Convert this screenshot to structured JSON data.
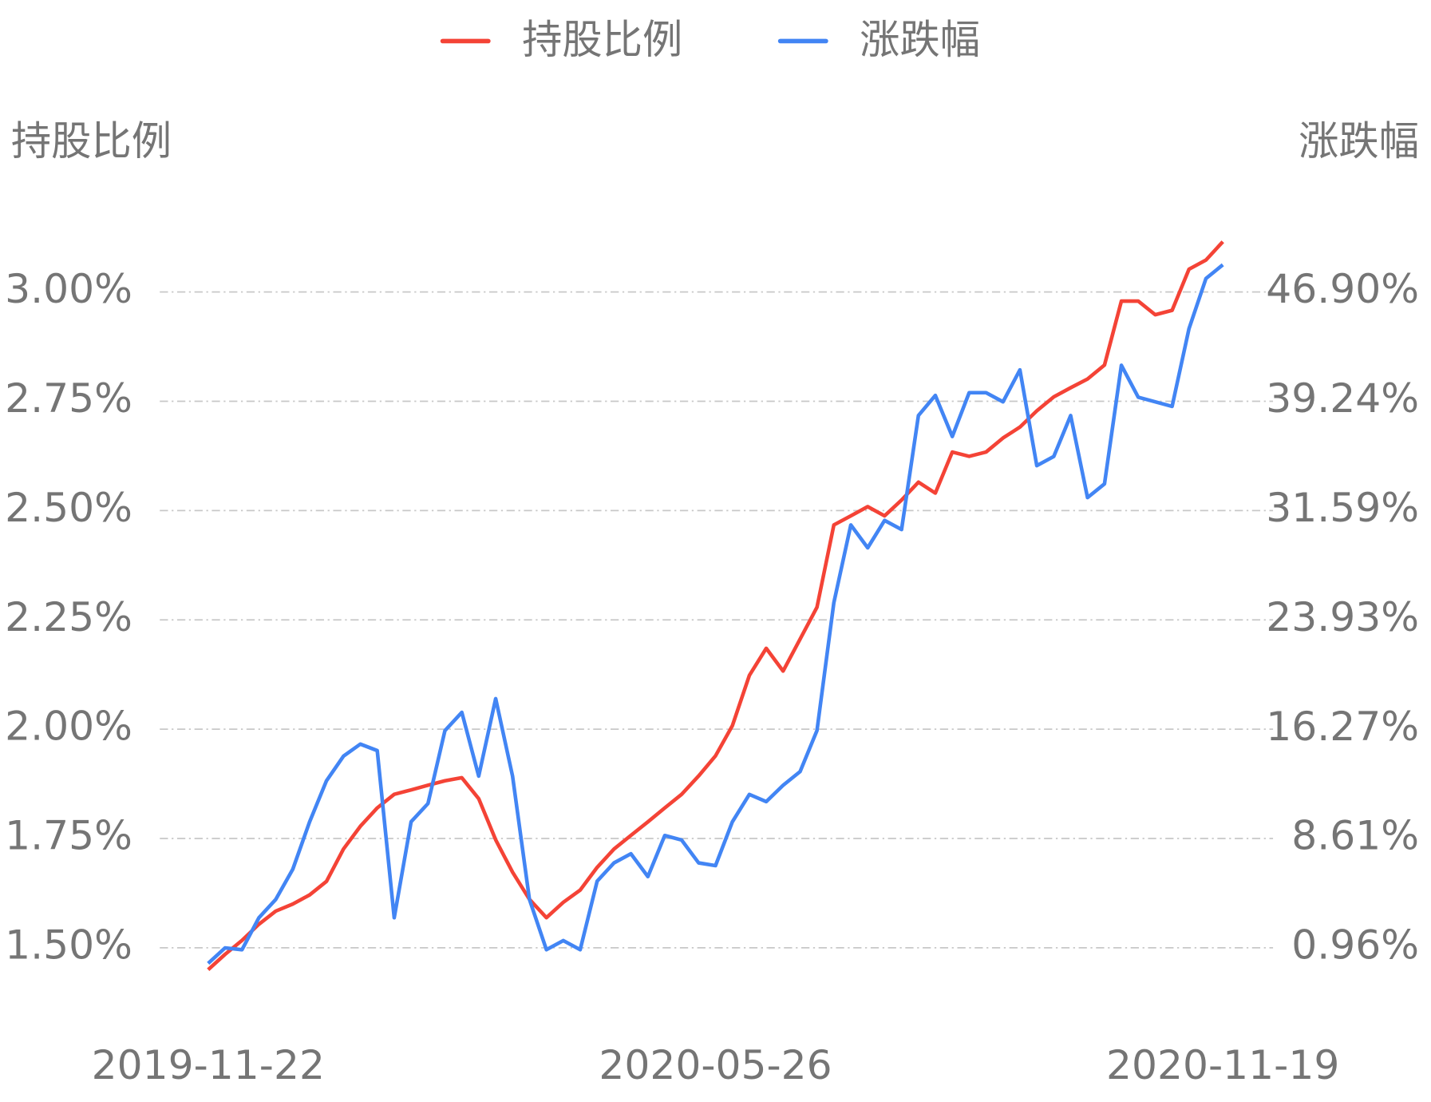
{
  "chart_data": {
    "type": "line",
    "ylabel": "持股比例",
    "y2label": "涨跌幅",
    "categories": [
      "2019-11-22",
      null,
      null,
      null,
      null,
      null,
      null,
      null,
      null,
      null,
      null,
      null,
      null,
      null,
      null,
      null,
      null,
      null,
      null,
      null,
      null,
      null,
      null,
      null,
      null,
      null,
      null,
      null,
      null,
      null,
      "2020-05-26",
      null,
      null,
      null,
      null,
      null,
      null,
      null,
      null,
      null,
      null,
      null,
      null,
      null,
      null,
      null,
      null,
      null,
      null,
      null,
      null,
      null,
      null,
      null,
      null,
      null,
      null,
      null,
      null,
      null,
      "2020-11-19"
    ],
    "series": [
      {
        "name": "持股比例",
        "color": "#f44336",
        "axis": "y",
        "values": [
          1.45,
          1.485,
          1.517,
          1.554,
          1.584,
          1.6,
          1.621,
          1.652,
          1.726,
          1.778,
          1.82,
          1.851,
          1.861,
          1.872,
          1.882,
          1.889,
          1.841,
          1.747,
          1.673,
          1.611,
          1.569,
          1.604,
          1.632,
          1.684,
          1.726,
          1.757,
          1.788,
          1.82,
          1.851,
          1.893,
          1.939,
          2.008,
          2.123,
          2.185,
          2.133,
          2.206,
          2.279,
          2.467,
          2.488,
          2.509,
          2.488,
          2.524,
          2.565,
          2.54,
          2.634,
          2.624,
          2.634,
          2.666,
          2.691,
          2.728,
          2.76,
          2.781,
          2.801,
          2.833,
          2.979,
          2.979,
          2.948,
          2.958,
          3.052,
          3.073,
          3.115
        ]
      },
      {
        "name": "涨跌幅",
        "color": "#4285f4",
        "axis": "y2",
        "values": [
          -0.13,
          0.96,
          0.83,
          3.07,
          4.35,
          6.46,
          9.79,
          12.67,
          14.39,
          15.23,
          14.78,
          3.07,
          9.79,
          11.07,
          16.18,
          17.46,
          12.99,
          18.42,
          12.99,
          4.35,
          0.83,
          1.47,
          0.83,
          5.63,
          6.91,
          7.55,
          5.95,
          8.83,
          8.51,
          6.91,
          6.72,
          9.79,
          11.71,
          11.2,
          12.35,
          13.31,
          16.18,
          25.14,
          30.58,
          28.98,
          30.9,
          30.26,
          38.25,
          39.66,
          36.78,
          39.85,
          39.85,
          39.21,
          41.45,
          34.74,
          35.38,
          38.25,
          32.5,
          33.46,
          41.77,
          39.53,
          39.21,
          38.89,
          44.33,
          47.85,
          48.81
        ]
      }
    ],
    "ylim": [
      1.4,
      3.2
    ],
    "yticks": [
      {
        "value": 1.5,
        "label": "1.50%"
      },
      {
        "value": 1.75,
        "label": "1.75%"
      },
      {
        "value": 2.0,
        "label": "2.00%"
      },
      {
        "value": 2.25,
        "label": "2.25%"
      },
      {
        "value": 2.5,
        "label": "2.50%"
      },
      {
        "value": 2.75,
        "label": "2.75%"
      },
      {
        "value": 3.0,
        "label": "3.00%"
      }
    ],
    "y2lim": [
      -2.1,
      53.03
    ],
    "y2ticks": [
      {
        "value": 0.96,
        "label": "0.96%"
      },
      {
        "value": 8.61,
        "label": "8.61%"
      },
      {
        "value": 16.27,
        "label": "16.27%"
      },
      {
        "value": 23.93,
        "label": "23.93%"
      },
      {
        "value": 31.59,
        "label": "31.59%"
      },
      {
        "value": 39.24,
        "label": "39.24%"
      },
      {
        "value": 46.9,
        "label": "46.90%"
      }
    ],
    "grid": true
  }
}
